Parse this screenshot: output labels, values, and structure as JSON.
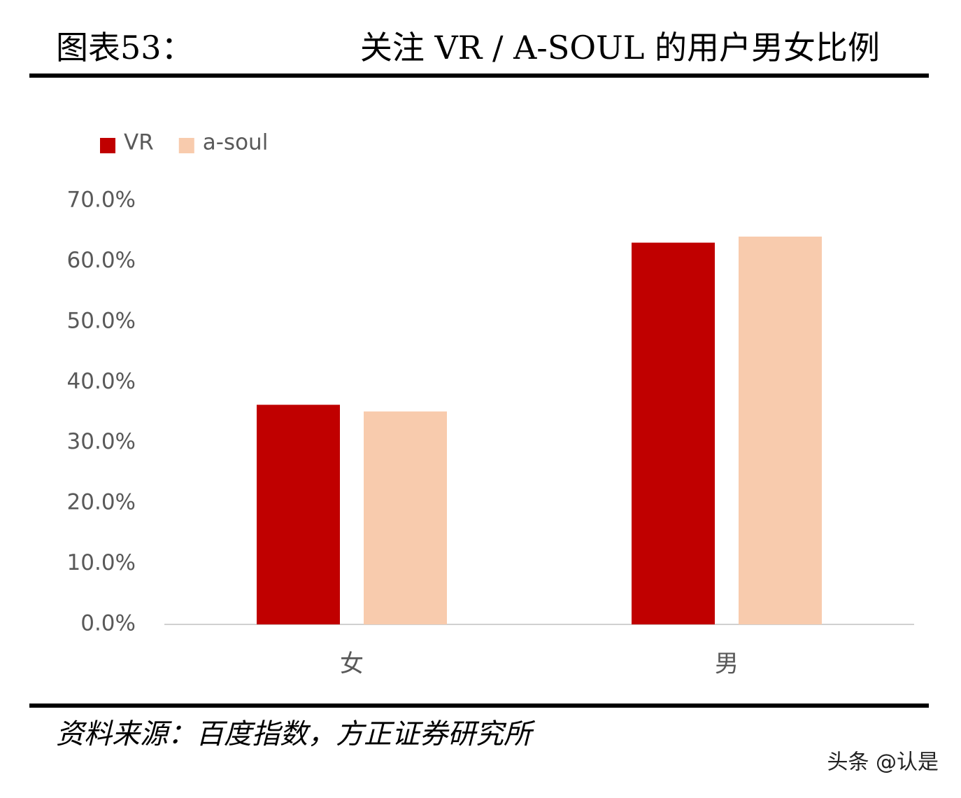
{
  "chart_data": {
    "type": "bar",
    "figure_label": "图表53：",
    "title": "关注 VR / A-SOUL 的用户男女比例",
    "categories": [
      "女",
      "男"
    ],
    "series": [
      {
        "name": "VR",
        "color": "#c00000",
        "values": [
          36.3,
          63.1
        ]
      },
      {
        "name": "a-soul",
        "color": "#f8cbad",
        "values": [
          35.2,
          64.1
        ]
      }
    ],
    "ylim": [
      0,
      70
    ],
    "yticks": [
      {
        "value": 0,
        "label": "0.0%"
      },
      {
        "value": 10,
        "label": "10.0%"
      },
      {
        "value": 20,
        "label": "20.0%"
      },
      {
        "value": 30,
        "label": "30.0%"
      },
      {
        "value": 40,
        "label": "40.0%"
      },
      {
        "value": 50,
        "label": "50.0%"
      },
      {
        "value": 60,
        "label": "60.0%"
      },
      {
        "value": 70,
        "label": "70.0%"
      }
    ],
    "grid": false,
    "legend": "top-left",
    "source": "资料来源：百度指数，方正证券研究所",
    "watermark": "头条 @认是"
  }
}
